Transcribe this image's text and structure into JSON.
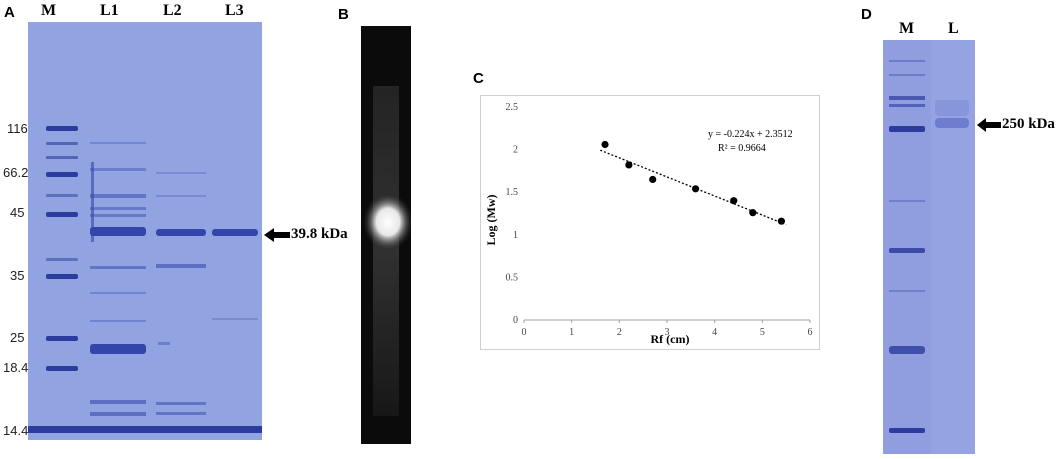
{
  "panels": {
    "a": {
      "letter": "A",
      "lanes": [
        "M",
        "L1",
        "L2",
        "L3"
      ],
      "markers": [
        "116",
        "66.2",
        "45",
        "35",
        "25",
        "18.4",
        "14.4"
      ],
      "band_label": "39.8 kDa",
      "gel_color": "#8d9ee0"
    },
    "b": {
      "letter": "B"
    },
    "c": {
      "letter": "C",
      "equation": "y = -0.224x + 2.3512",
      "r_squared": "R² = 0.9664"
    },
    "d": {
      "letter": "D",
      "lanes": [
        "M",
        "L"
      ],
      "band_label": "250 kDa",
      "gel_color": "#95a3e2"
    }
  },
  "chart_data": {
    "type": "scatter",
    "xlabel": "Rf (cm)",
    "ylabel": "Log (Mw)",
    "xlim": [
      0,
      6
    ],
    "ylim": [
      0,
      2.5
    ],
    "x_ticks": [
      "0",
      "1",
      "2",
      "3",
      "4",
      "5",
      "6"
    ],
    "y_ticks": [
      "0",
      "0.5",
      "1",
      "1.5",
      "2",
      "2.5"
    ],
    "x": [
      1.7,
      2.2,
      2.7,
      3.6,
      4.4,
      4.8,
      5.4
    ],
    "y": [
      2.06,
      1.82,
      1.65,
      1.54,
      1.4,
      1.26,
      1.16
    ],
    "trendline": {
      "slope": -0.224,
      "intercept": 2.3512,
      "x_range": [
        1.6,
        5.5
      ]
    },
    "grid": false
  }
}
